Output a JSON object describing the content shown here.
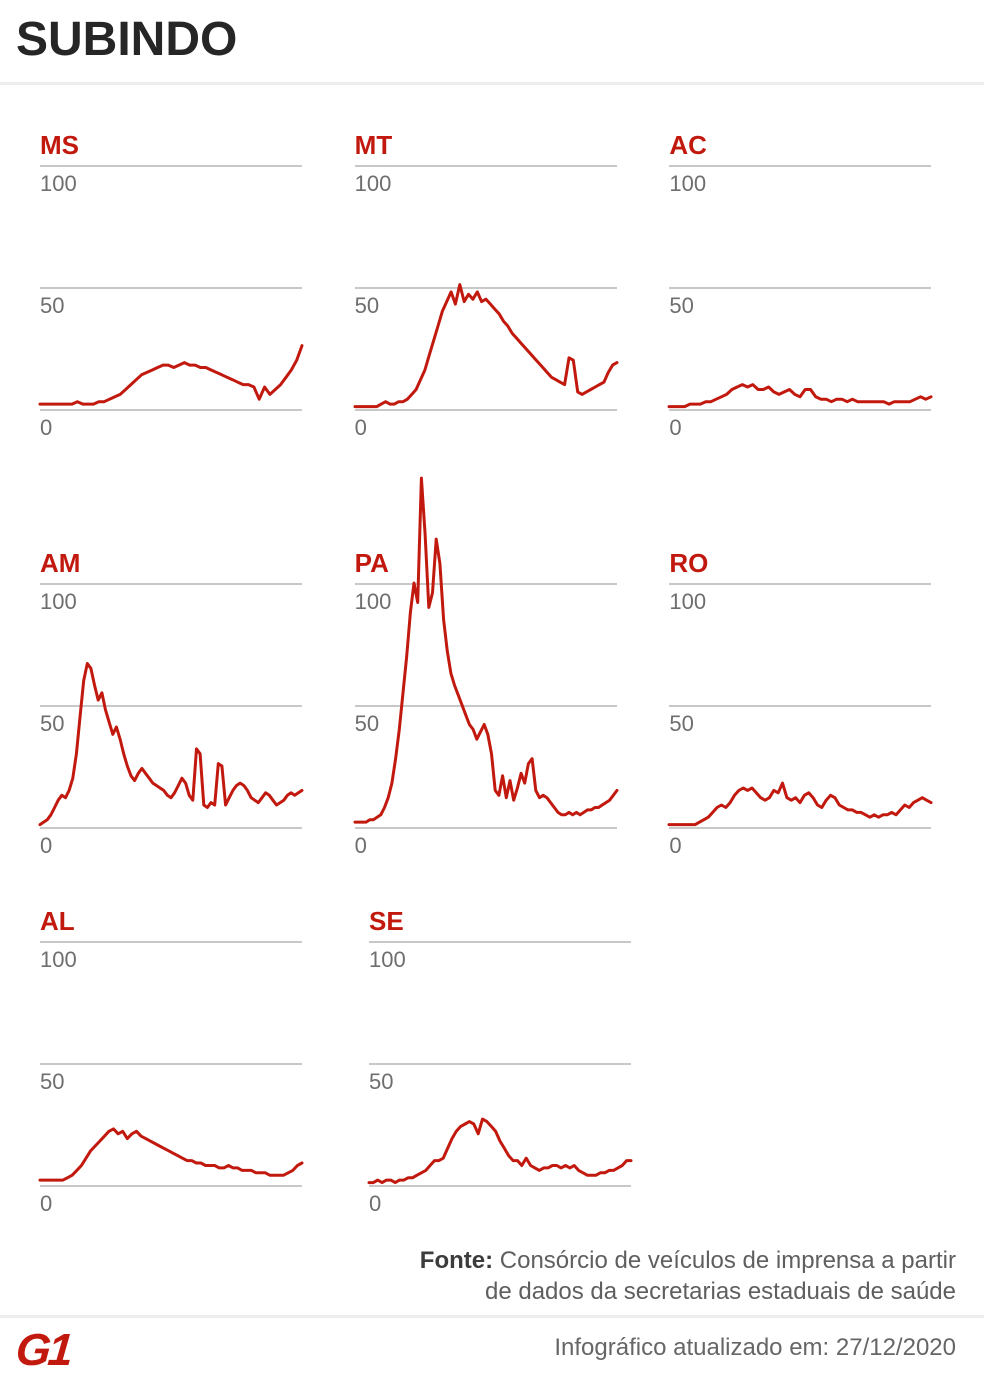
{
  "title": "SUBINDO",
  "colors": {
    "accent_red": "#c2190e",
    "grid": "#c8c8c8",
    "tick_text": "#6e6e6e",
    "title_text": "#262626",
    "source_text": "#5f5f5f",
    "divider": "#ededed"
  },
  "footer": {
    "source_label": "Fonte:",
    "source_line1": "Consórcio de veículos de imprensa a partir",
    "source_line2": "de dados da secretarias estaduais de saúde",
    "updated_text": "Infográfico atualizado em: 27/12/2020",
    "logo_text": "G1"
  },
  "chart_data": [
    {
      "type": "line",
      "title": "MS",
      "xlabel": "",
      "ylabel": "",
      "ylim": [
        0,
        100
      ],
      "yticks": [
        "100",
        "50",
        "0"
      ],
      "grid": true,
      "values": [
        2,
        2,
        2,
        2,
        2,
        2,
        2,
        3,
        2,
        2,
        2,
        3,
        3,
        4,
        5,
        6,
        8,
        10,
        12,
        14,
        15,
        16,
        17,
        18,
        18,
        17,
        18,
        19,
        18,
        18,
        17,
        17,
        16,
        15,
        14,
        13,
        12,
        11,
        10,
        10,
        9,
        4,
        9,
        6,
        8,
        10,
        13,
        16,
        20,
        26
      ]
    },
    {
      "type": "line",
      "title": "MT",
      "xlabel": "",
      "ylabel": "",
      "ylim": [
        0,
        100
      ],
      "yticks": [
        "100",
        "50",
        "0"
      ],
      "grid": true,
      "values": [
        1,
        1,
        1,
        1,
        1,
        1,
        2,
        3,
        2,
        2,
        3,
        3,
        4,
        6,
        8,
        12,
        16,
        22,
        28,
        34,
        40,
        44,
        48,
        43,
        51,
        44,
        47,
        45,
        48,
        44,
        45,
        43,
        41,
        39,
        36,
        34,
        31,
        29,
        27,
        25,
        23,
        21,
        19,
        17,
        15,
        13,
        12,
        11,
        10,
        21,
        20,
        7,
        6,
        7,
        8,
        9,
        10,
        11,
        15,
        18,
        19
      ]
    },
    {
      "type": "line",
      "title": "AC",
      "xlabel": "",
      "ylabel": "",
      "ylim": [
        0,
        100
      ],
      "yticks": [
        "100",
        "50",
        "0"
      ],
      "grid": true,
      "values": [
        1,
        1,
        1,
        1,
        2,
        2,
        2,
        3,
        3,
        4,
        5,
        6,
        8,
        9,
        10,
        9,
        10,
        8,
        8,
        9,
        7,
        6,
        7,
        8,
        6,
        5,
        8,
        8,
        5,
        4,
        4,
        3,
        4,
        4,
        3,
        4,
        3,
        3,
        3,
        3,
        3,
        3,
        2,
        3,
        3,
        3,
        3,
        4,
        5,
        4,
        5
      ]
    },
    {
      "type": "line",
      "title": "AM",
      "xlabel": "",
      "ylabel": "",
      "ylim": [
        0,
        100
      ],
      "yticks": [
        "100",
        "50",
        "0"
      ],
      "grid": true,
      "values": [
        1,
        2,
        3,
        5,
        8,
        11,
        13,
        12,
        15,
        20,
        30,
        45,
        60,
        67,
        65,
        58,
        52,
        55,
        48,
        43,
        38,
        41,
        36,
        30,
        25,
        21,
        19,
        22,
        24,
        22,
        20,
        18,
        17,
        16,
        15,
        13,
        12,
        14,
        17,
        20,
        18,
        13,
        11,
        32,
        30,
        9,
        8,
        10,
        9,
        26,
        25,
        9,
        12,
        15,
        17,
        18,
        17,
        15,
        12,
        11,
        10,
        12,
        14,
        13,
        11,
        9,
        10,
        11,
        13,
        14,
        13,
        14,
        15
      ]
    },
    {
      "type": "line",
      "title": "PA",
      "xlabel": "",
      "ylabel": "",
      "ylim": [
        0,
        100
      ],
      "yticks": [
        "100",
        "50",
        "0"
      ],
      "grid": true,
      "values": [
        2,
        2,
        2,
        2,
        3,
        3,
        4,
        5,
        8,
        12,
        18,
        28,
        40,
        55,
        70,
        88,
        100,
        92,
        143,
        120,
        90,
        96,
        118,
        108,
        85,
        72,
        63,
        58,
        54,
        50,
        46,
        42,
        40,
        36,
        39,
        42,
        38,
        30,
        15,
        13,
        21,
        12,
        19,
        11,
        16,
        22,
        18,
        26,
        28,
        15,
        12,
        13,
        12,
        10,
        8,
        6,
        5,
        5,
        6,
        5,
        6,
        5,
        6,
        7,
        7,
        8,
        8,
        9,
        10,
        11,
        13,
        15
      ]
    },
    {
      "type": "line",
      "title": "RO",
      "xlabel": "",
      "ylabel": "",
      "ylim": [
        0,
        100
      ],
      "yticks": [
        "100",
        "50",
        "0"
      ],
      "grid": true,
      "values": [
        1,
        1,
        1,
        1,
        1,
        1,
        1,
        2,
        3,
        4,
        6,
        8,
        9,
        8,
        10,
        13,
        15,
        16,
        15,
        16,
        14,
        12,
        11,
        12,
        15,
        14,
        18,
        12,
        11,
        12,
        10,
        13,
        14,
        12,
        9,
        8,
        11,
        13,
        12,
        9,
        8,
        7,
        7,
        6,
        6,
        5,
        4,
        5,
        4,
        5,
        5,
        6,
        5,
        7,
        9,
        8,
        10,
        11,
        12,
        11,
        10
      ]
    },
    {
      "type": "line",
      "title": "AL",
      "xlabel": "",
      "ylabel": "",
      "ylim": [
        0,
        100
      ],
      "yticks": [
        "100",
        "50",
        "0"
      ],
      "grid": true,
      "values": [
        2,
        2,
        2,
        2,
        2,
        2,
        3,
        4,
        6,
        8,
        11,
        14,
        16,
        18,
        20,
        22,
        23,
        21,
        22,
        19,
        21,
        22,
        20,
        19,
        18,
        17,
        16,
        15,
        14,
        13,
        12,
        11,
        10,
        10,
        9,
        9,
        8,
        8,
        8,
        7,
        7,
        8,
        7,
        7,
        6,
        6,
        6,
        5,
        5,
        5,
        4,
        4,
        4,
        4,
        5,
        6,
        8,
        9
      ]
    },
    {
      "type": "line",
      "title": "SE",
      "xlabel": "",
      "ylabel": "",
      "ylim": [
        0,
        100
      ],
      "yticks": [
        "100",
        "50",
        "0"
      ],
      "grid": true,
      "values": [
        1,
        1,
        2,
        1,
        2,
        2,
        1,
        2,
        2,
        3,
        3,
        4,
        5,
        6,
        8,
        10,
        10,
        11,
        15,
        19,
        22,
        24,
        25,
        26,
        25,
        21,
        27,
        26,
        24,
        22,
        18,
        15,
        12,
        10,
        10,
        8,
        11,
        8,
        7,
        6,
        7,
        7,
        8,
        8,
        7,
        8,
        7,
        8,
        6,
        5,
        4,
        4,
        4,
        5,
        5,
        6,
        6,
        7,
        8,
        10,
        10
      ]
    }
  ]
}
